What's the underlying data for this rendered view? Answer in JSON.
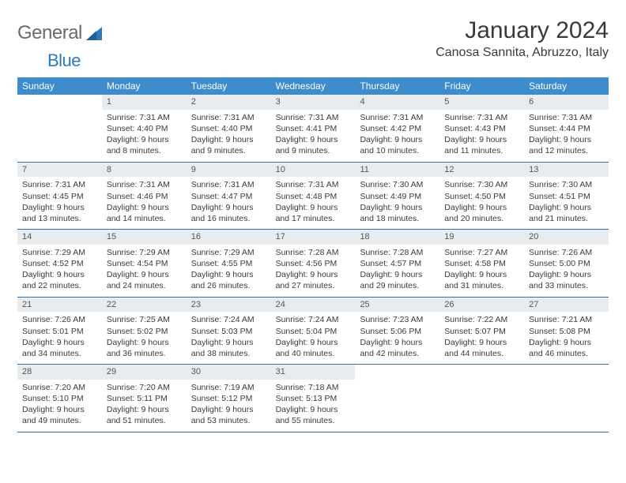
{
  "brand": {
    "part1": "General",
    "part2": "Blue"
  },
  "title": "January 2024",
  "location": "Canosa Sannita, Abruzzo, Italy",
  "colors": {
    "header_bg": "#3e8ccc",
    "header_text": "#ffffff",
    "daynum_bg": "#e9ecef",
    "rule": "#2f72a8",
    "body_text": "#3a3a3a",
    "logo_gray": "#6a6a6a",
    "logo_blue": "#2b7bbf"
  },
  "weekdays": [
    "Sunday",
    "Monday",
    "Tuesday",
    "Wednesday",
    "Thursday",
    "Friday",
    "Saturday"
  ],
  "weeks": [
    [
      {
        "empty": true
      },
      {
        "n": "1",
        "sr": "7:31 AM",
        "ss": "4:40 PM",
        "dl": "9 hours and 8 minutes."
      },
      {
        "n": "2",
        "sr": "7:31 AM",
        "ss": "4:40 PM",
        "dl": "9 hours and 9 minutes."
      },
      {
        "n": "3",
        "sr": "7:31 AM",
        "ss": "4:41 PM",
        "dl": "9 hours and 9 minutes."
      },
      {
        "n": "4",
        "sr": "7:31 AM",
        "ss": "4:42 PM",
        "dl": "9 hours and 10 minutes."
      },
      {
        "n": "5",
        "sr": "7:31 AM",
        "ss": "4:43 PM",
        "dl": "9 hours and 11 minutes."
      },
      {
        "n": "6",
        "sr": "7:31 AM",
        "ss": "4:44 PM",
        "dl": "9 hours and 12 minutes."
      }
    ],
    [
      {
        "n": "7",
        "sr": "7:31 AM",
        "ss": "4:45 PM",
        "dl": "9 hours and 13 minutes."
      },
      {
        "n": "8",
        "sr": "7:31 AM",
        "ss": "4:46 PM",
        "dl": "9 hours and 14 minutes."
      },
      {
        "n": "9",
        "sr": "7:31 AM",
        "ss": "4:47 PM",
        "dl": "9 hours and 16 minutes."
      },
      {
        "n": "10",
        "sr": "7:31 AM",
        "ss": "4:48 PM",
        "dl": "9 hours and 17 minutes."
      },
      {
        "n": "11",
        "sr": "7:30 AM",
        "ss": "4:49 PM",
        "dl": "9 hours and 18 minutes."
      },
      {
        "n": "12",
        "sr": "7:30 AM",
        "ss": "4:50 PM",
        "dl": "9 hours and 20 minutes."
      },
      {
        "n": "13",
        "sr": "7:30 AM",
        "ss": "4:51 PM",
        "dl": "9 hours and 21 minutes."
      }
    ],
    [
      {
        "n": "14",
        "sr": "7:29 AM",
        "ss": "4:52 PM",
        "dl": "9 hours and 22 minutes."
      },
      {
        "n": "15",
        "sr": "7:29 AM",
        "ss": "4:54 PM",
        "dl": "9 hours and 24 minutes."
      },
      {
        "n": "16",
        "sr": "7:29 AM",
        "ss": "4:55 PM",
        "dl": "9 hours and 26 minutes."
      },
      {
        "n": "17",
        "sr": "7:28 AM",
        "ss": "4:56 PM",
        "dl": "9 hours and 27 minutes."
      },
      {
        "n": "18",
        "sr": "7:28 AM",
        "ss": "4:57 PM",
        "dl": "9 hours and 29 minutes."
      },
      {
        "n": "19",
        "sr": "7:27 AM",
        "ss": "4:58 PM",
        "dl": "9 hours and 31 minutes."
      },
      {
        "n": "20",
        "sr": "7:26 AM",
        "ss": "5:00 PM",
        "dl": "9 hours and 33 minutes."
      }
    ],
    [
      {
        "n": "21",
        "sr": "7:26 AM",
        "ss": "5:01 PM",
        "dl": "9 hours and 34 minutes."
      },
      {
        "n": "22",
        "sr": "7:25 AM",
        "ss": "5:02 PM",
        "dl": "9 hours and 36 minutes."
      },
      {
        "n": "23",
        "sr": "7:24 AM",
        "ss": "5:03 PM",
        "dl": "9 hours and 38 minutes."
      },
      {
        "n": "24",
        "sr": "7:24 AM",
        "ss": "5:04 PM",
        "dl": "9 hours and 40 minutes."
      },
      {
        "n": "25",
        "sr": "7:23 AM",
        "ss": "5:06 PM",
        "dl": "9 hours and 42 minutes."
      },
      {
        "n": "26",
        "sr": "7:22 AM",
        "ss": "5:07 PM",
        "dl": "9 hours and 44 minutes."
      },
      {
        "n": "27",
        "sr": "7:21 AM",
        "ss": "5:08 PM",
        "dl": "9 hours and 46 minutes."
      }
    ],
    [
      {
        "n": "28",
        "sr": "7:20 AM",
        "ss": "5:10 PM",
        "dl": "9 hours and 49 minutes."
      },
      {
        "n": "29",
        "sr": "7:20 AM",
        "ss": "5:11 PM",
        "dl": "9 hours and 51 minutes."
      },
      {
        "n": "30",
        "sr": "7:19 AM",
        "ss": "5:12 PM",
        "dl": "9 hours and 53 minutes."
      },
      {
        "n": "31",
        "sr": "7:18 AM",
        "ss": "5:13 PM",
        "dl": "9 hours and 55 minutes."
      },
      {
        "empty": true
      },
      {
        "empty": true
      },
      {
        "empty": true
      }
    ]
  ],
  "labels": {
    "sunrise": "Sunrise:",
    "sunset": "Sunset:",
    "daylight": "Daylight:"
  }
}
